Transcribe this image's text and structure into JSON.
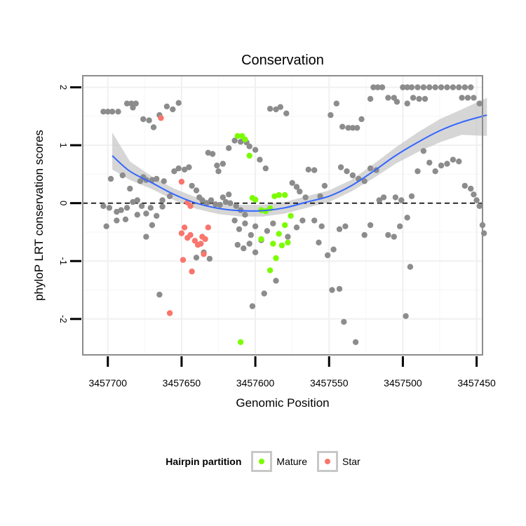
{
  "chart_data": {
    "type": "scatter",
    "title": "Conservation",
    "xlabel": "Genomic Position",
    "ylabel": "phyloP LRT conservation scores",
    "xlim": [
      3457717,
      3457446
    ],
    "ylim": [
      -2.62,
      2.2
    ],
    "x_ticks": [
      3457700,
      3457650,
      3457600,
      3457550,
      3457500,
      3457450
    ],
    "x_tick_labels": [
      "3457700",
      "3457650",
      "3457600",
      "3457550",
      "3457500",
      "3457450"
    ],
    "y_ticks": [
      -2,
      -1,
      0,
      1,
      2
    ],
    "y_tick_labels": [
      "-2",
      "-1",
      "0",
      "1",
      "2"
    ],
    "reference_line": 0,
    "legend": {
      "title": "Hairpin partition",
      "entries": [
        {
          "label": "Mature",
          "color": "#7cfc00"
        },
        {
          "label": "Star",
          "color": "#f8766d"
        }
      ]
    },
    "colors": {
      "other": "#8c8c8c",
      "mature": "#7cfc00",
      "star": "#f8766d",
      "smooth_line": "#3366ff",
      "ribbon": "#c8c8c8",
      "panel_border": "#8c8c8c",
      "grid": "#f0f0f0"
    },
    "smooth": {
      "x": [
        3457697,
        3457685,
        3457670,
        3457655,
        3457640,
        3457625,
        3457610,
        3457595,
        3457580,
        3457565,
        3457550,
        3457535,
        3457520,
        3457505,
        3457490,
        3457475,
        3457460,
        3457443
      ],
      "y": [
        0.82,
        0.55,
        0.35,
        0.15,
        0.0,
        -0.09,
        -0.13,
        -0.13,
        -0.08,
        0.02,
        0.12,
        0.3,
        0.55,
        0.82,
        1.05,
        1.25,
        1.4,
        1.52
      ],
      "lo": [
        0.58,
        0.4,
        0.24,
        0.05,
        -0.1,
        -0.19,
        -0.23,
        -0.23,
        -0.18,
        -0.08,
        0.02,
        0.2,
        0.43,
        0.68,
        0.88,
        1.05,
        1.18,
        1.16
      ],
      "hi": [
        1.22,
        0.72,
        0.46,
        0.25,
        0.1,
        0.01,
        -0.03,
        -0.03,
        0.02,
        0.12,
        0.22,
        0.4,
        0.67,
        0.96,
        1.22,
        1.45,
        1.62,
        1.82
      ]
    },
    "series": [
      {
        "name": "Mature",
        "points": [
          [
            3457612,
            1.16
          ],
          [
            3457609,
            1.16
          ],
          [
            3457607,
            1.1
          ],
          [
            3457604,
            0.82
          ],
          [
            3457602,
            0.09
          ],
          [
            3457600,
            0.06
          ],
          [
            3457596,
            -0.12
          ],
          [
            3457593,
            -0.14
          ],
          [
            3457590,
            -0.09
          ],
          [
            3457587,
            0.12
          ],
          [
            3457584,
            0.14
          ],
          [
            3457580,
            0.14
          ],
          [
            3457596,
            -0.62
          ],
          [
            3457588,
            -0.7
          ],
          [
            3457584,
            -0.53
          ],
          [
            3457582,
            -0.73
          ],
          [
            3457580,
            -0.38
          ],
          [
            3457578,
            -0.68
          ],
          [
            3457586,
            -0.95
          ],
          [
            3457590,
            -1.16
          ],
          [
            3457576,
            -0.22
          ],
          [
            3457610,
            -2.4
          ]
        ]
      },
      {
        "name": "Star",
        "points": [
          [
            3457664,
            1.47
          ],
          [
            3457650,
            0.37
          ],
          [
            3457646,
            0.01
          ],
          [
            3457644,
            -0.05
          ],
          [
            3457648,
            -0.42
          ],
          [
            3457650,
            -0.52
          ],
          [
            3457646,
            -0.6
          ],
          [
            3457644,
            -0.55
          ],
          [
            3457641,
            -0.65
          ],
          [
            3457639,
            -0.72
          ],
          [
            3457636,
            -0.58
          ],
          [
            3457634,
            -0.62
          ],
          [
            3457632,
            -0.42
          ],
          [
            3457635,
            -0.88
          ],
          [
            3457637,
            -0.7
          ],
          [
            3457649,
            -0.98
          ],
          [
            3457643,
            -1.18
          ],
          [
            3457658,
            -1.9
          ]
        ]
      },
      {
        "name": "Other",
        "points": [
          [
            3457703,
            1.58
          ],
          [
            3457700,
            1.58
          ],
          [
            3457697,
            1.58
          ],
          [
            3457693,
            1.58
          ],
          [
            3457687,
            1.72
          ],
          [
            3457684,
            1.72
          ],
          [
            3457683,
            1.65
          ],
          [
            3457681,
            1.72
          ],
          [
            3457676,
            1.45
          ],
          [
            3457672,
            1.43
          ],
          [
            3457669,
            1.31
          ],
          [
            3457665,
            1.52
          ],
          [
            3457660,
            1.67
          ],
          [
            3457656,
            1.62
          ],
          [
            3457652,
            1.73
          ],
          [
            3457698,
            0.42
          ],
          [
            3457690,
            0.48
          ],
          [
            3457685,
            0.25
          ],
          [
            3457678,
            0.38
          ],
          [
            3457676,
            0.45
          ],
          [
            3457674,
            0.4
          ],
          [
            3457670,
            0.4
          ],
          [
            3457667,
            0.42
          ],
          [
            3457662,
            0.38
          ],
          [
            3457658,
            0.12
          ],
          [
            3457655,
            0.55
          ],
          [
            3457652,
            0.6
          ],
          [
            3457648,
            0.58
          ],
          [
            3457645,
            0.62
          ],
          [
            3457643,
            0.3
          ],
          [
            3457640,
            0.22
          ],
          [
            3457638,
            0.1
          ],
          [
            3457636,
            0.05
          ],
          [
            3457633,
            0.0
          ],
          [
            3457630,
            0.05
          ],
          [
            3457627,
            -0.02
          ],
          [
            3457624,
            -0.03
          ],
          [
            3457620,
            0.02
          ],
          [
            3457617,
            0.0
          ],
          [
            3457613,
            -0.05
          ],
          [
            3457610,
            -0.12
          ],
          [
            3457607,
            -0.2
          ],
          [
            3457703,
            -0.05
          ],
          [
            3457699,
            -0.08
          ],
          [
            3457694,
            -0.15
          ],
          [
            3457691,
            -0.12
          ],
          [
            3457687,
            -0.08
          ],
          [
            3457683,
            0.02
          ],
          [
            3457680,
            0.05
          ],
          [
            3457677,
            -0.05
          ],
          [
            3457674,
            -0.18
          ],
          [
            3457671,
            -0.08
          ],
          [
            3457667,
            -0.22
          ],
          [
            3457663,
            -0.06
          ],
          [
            3457701,
            -0.4
          ],
          [
            3457694,
            -0.3
          ],
          [
            3457688,
            -0.28
          ],
          [
            3457680,
            -0.2
          ],
          [
            3457674,
            -0.58
          ],
          [
            3457670,
            -0.38
          ],
          [
            3457663,
            0.05
          ],
          [
            3457640,
            -0.94
          ],
          [
            3457635,
            -0.85
          ],
          [
            3457631,
            -0.96
          ],
          [
            3457612,
            -0.72
          ],
          [
            3457608,
            -0.78
          ],
          [
            3457604,
            -0.7
          ],
          [
            3457600,
            -0.85
          ],
          [
            3457596,
            -0.64
          ],
          [
            3457592,
            -0.48
          ],
          [
            3457588,
            -0.35
          ],
          [
            3457665,
            -1.58
          ],
          [
            3457602,
            -1.78
          ],
          [
            3457594,
            -1.56
          ],
          [
            3457586,
            -1.34
          ],
          [
            3457578,
            -0.58
          ],
          [
            3457572,
            -0.42
          ],
          [
            3457568,
            -0.3
          ],
          [
            3457632,
            0.87
          ],
          [
            3457629,
            0.85
          ],
          [
            3457625,
            0.55
          ],
          [
            3457622,
            0.68
          ],
          [
            3457618,
            0.95
          ],
          [
            3457614,
            1.08
          ],
          [
            3457610,
            1.06
          ],
          [
            3457606,
            1.05
          ],
          [
            3457604,
            0.98
          ],
          [
            3457600,
            0.92
          ],
          [
            3457597,
            0.75
          ],
          [
            3457593,
            0.6
          ],
          [
            3457626,
            0.65
          ],
          [
            3457622,
            0.1
          ],
          [
            3457618,
            0.15
          ],
          [
            3457614,
            -0.3
          ],
          [
            3457611,
            -0.45
          ],
          [
            3457607,
            -0.35
          ],
          [
            3457603,
            -0.55
          ],
          [
            3457600,
            -0.4
          ],
          [
            3457590,
            1.63
          ],
          [
            3457586,
            1.62
          ],
          [
            3457583,
            1.66
          ],
          [
            3457579,
            1.55
          ],
          [
            3457575,
            0.35
          ],
          [
            3457572,
            0.28
          ],
          [
            3457570,
            0.2
          ],
          [
            3457566,
            0.1
          ],
          [
            3457564,
            0.58
          ],
          [
            3457560,
            0.57
          ],
          [
            3457556,
            0.12
          ],
          [
            3457553,
            0.3
          ],
          [
            3457549,
            1.52
          ],
          [
            3457545,
            1.72
          ],
          [
            3457541,
            1.32
          ],
          [
            3457537,
            1.3
          ],
          [
            3457534,
            1.3
          ],
          [
            3457531,
            1.3
          ],
          [
            3457528,
            1.45
          ],
          [
            3457560,
            -0.3
          ],
          [
            3457557,
            -0.68
          ],
          [
            3457555,
            -0.4
          ],
          [
            3457551,
            -0.9
          ],
          [
            3457547,
            -0.8
          ],
          [
            3457543,
            -0.45
          ],
          [
            3457539,
            -0.4
          ],
          [
            3457548,
            -1.5
          ],
          [
            3457543,
            -1.48
          ],
          [
            3457540,
            -2.05
          ],
          [
            3457532,
            -2.4
          ],
          [
            3457526,
            -0.55
          ],
          [
            3457522,
            -0.38
          ],
          [
            3457542,
            0.62
          ],
          [
            3457538,
            0.55
          ],
          [
            3457534,
            0.48
          ],
          [
            3457530,
            0.42
          ],
          [
            3457526,
            0.38
          ],
          [
            3457522,
            0.6
          ],
          [
            3457518,
            0.57
          ],
          [
            3457516,
            0.05
          ],
          [
            3457513,
            0.1
          ],
          [
            3457510,
            -0.55
          ],
          [
            3457506,
            -0.58
          ],
          [
            3457502,
            -0.4
          ],
          [
            3457522,
            1.8
          ],
          [
            3457520,
            2.0
          ],
          [
            3457517,
            2.0
          ],
          [
            3457514,
            2.0
          ],
          [
            3457510,
            1.82
          ],
          [
            3457506,
            1.82
          ],
          [
            3457504,
            1.75
          ],
          [
            3457500,
            2.0
          ],
          [
            3457497,
            2.0
          ],
          [
            3457494,
            2.0
          ],
          [
            3457490,
            2.0
          ],
          [
            3457486,
            2.0
          ],
          [
            3457482,
            2.0
          ],
          [
            3457478,
            2.0
          ],
          [
            3457474,
            2.0
          ],
          [
            3457470,
            2.0
          ],
          [
            3457466,
            2.0
          ],
          [
            3457462,
            2.0
          ],
          [
            3457458,
            2.0
          ],
          [
            3457454,
            2.0
          ],
          [
            3457460,
            1.82
          ],
          [
            3457456,
            1.82
          ],
          [
            3457452,
            1.82
          ],
          [
            3457448,
            1.72
          ],
          [
            3457497,
            1.72
          ],
          [
            3457493,
            1.82
          ],
          [
            3457489,
            1.8
          ],
          [
            3457485,
            1.8
          ],
          [
            3457505,
            0.1
          ],
          [
            3457501,
            0.05
          ],
          [
            3457497,
            -0.25
          ],
          [
            3457494,
            0.12
          ],
          [
            3457490,
            0.55
          ],
          [
            3457486,
            0.9
          ],
          [
            3457482,
            0.7
          ],
          [
            3457478,
            0.55
          ],
          [
            3457474,
            0.65
          ],
          [
            3457470,
            0.68
          ],
          [
            3457466,
            0.75
          ],
          [
            3457462,
            0.72
          ],
          [
            3457458,
            0.3
          ],
          [
            3457454,
            0.25
          ],
          [
            3457452,
            0.15
          ],
          [
            3457450,
            0.05
          ],
          [
            3457448,
            -0.05
          ],
          [
            3457446,
            -0.38
          ],
          [
            3457445,
            -0.52
          ],
          [
            3457495,
            -1.1
          ],
          [
            3457498,
            -1.95
          ]
        ]
      }
    ]
  }
}
